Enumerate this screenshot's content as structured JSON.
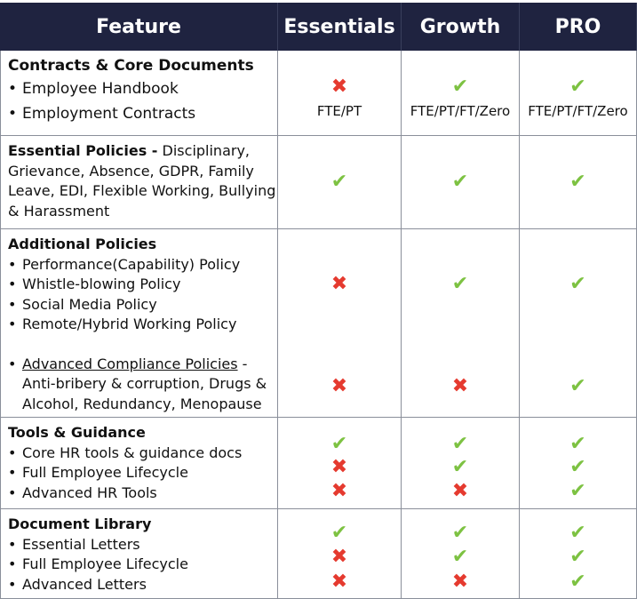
{
  "header": {
    "feature": "Feature",
    "essentials": "Essentials",
    "growth": "Growth",
    "pro": "PRO"
  },
  "colors": {
    "header_bg": "#1f2340",
    "check": "#7dc242",
    "cross": "#e53a2f"
  },
  "rows": [
    {
      "title": "Contracts & Core Documents",
      "items": [
        "Employee Handbook",
        "Employment Contracts"
      ],
      "essentials": {
        "mark": "cross",
        "note": "FTE/PT"
      },
      "growth": {
        "mark": "check",
        "note": "FTE/PT/FT/Zero"
      },
      "pro": {
        "mark": "check",
        "note": "FTE/PT/FT/Zero"
      }
    },
    {
      "title": "Essential Policies -",
      "desc": " Disciplinary, Grievance, Absence, GDPR, Family Leave, EDI, Flexible Working, Bullying & Harassment",
      "essentials": "check",
      "growth": "check",
      "pro": "check"
    },
    {
      "title": "Additional Policies",
      "items": [
        "Performance(Capability) Policy",
        "Whistle-blowing Policy",
        "Social Media Policy",
        "Remote/Hybrid Working Policy"
      ],
      "advanced_link": "Advanced Compliance Policies",
      "advanced_desc": " - Anti-bribery & corruption, Drugs & Alcohol, Redundancy, Menopause",
      "essentials": [
        "cross",
        "cross"
      ],
      "growth": [
        "check",
        "cross"
      ],
      "pro": [
        "check",
        "check"
      ]
    },
    {
      "title": "Tools & Guidance",
      "items": [
        "Core HR tools & guidance docs",
        "Full Employee Lifecycle",
        "Advanced HR Tools"
      ],
      "essentials": [
        "check",
        "cross",
        "cross"
      ],
      "growth": [
        "check",
        "check",
        "cross"
      ],
      "pro": [
        "check",
        "check",
        "check"
      ]
    },
    {
      "title": "Document Library",
      "items": [
        "Essential Letters",
        "Full Employee Lifecycle",
        "Advanced Letters"
      ],
      "essentials": [
        "check",
        "cross",
        "cross"
      ],
      "growth": [
        "check",
        "check",
        "cross"
      ],
      "pro": [
        "check",
        "check",
        "check"
      ]
    }
  ]
}
